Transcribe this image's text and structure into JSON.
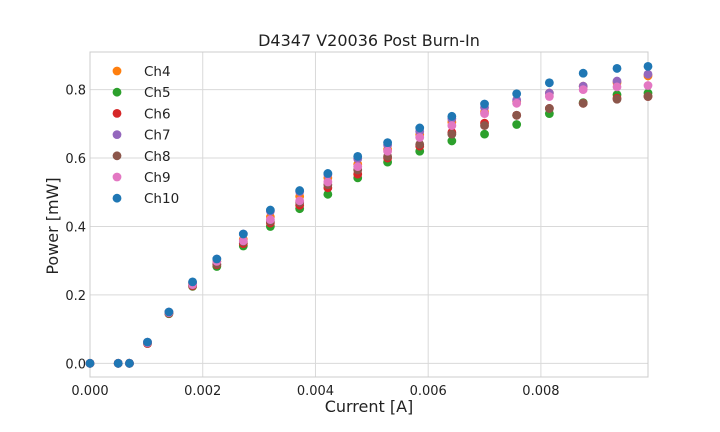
{
  "chart_data": {
    "type": "scatter",
    "title": "D4347 V20036 Post Burn-In",
    "xlabel": "Current [A]",
    "ylabel": "Power [mW]",
    "xlim": [
      0,
      0.0099
    ],
    "ylim": [
      -0.04,
      0.91
    ],
    "xticks": [
      0.0,
      0.002,
      0.004,
      0.006,
      0.008
    ],
    "xtick_labels": [
      "0.000",
      "0.002",
      "0.004",
      "0.006",
      "0.008"
    ],
    "yticks": [
      0.0,
      0.2,
      0.4,
      0.6,
      0.8
    ],
    "ytick_labels": [
      "0.0",
      "0.2",
      "0.4",
      "0.6",
      "0.8"
    ],
    "grid": true,
    "legend_position": "top-left",
    "x": [
      0.0,
      0.0005,
      0.0007,
      0.00102,
      0.0014,
      0.00182,
      0.00225,
      0.00272,
      0.0032,
      0.00372,
      0.00422,
      0.00475,
      0.00528,
      0.00585,
      0.00642,
      0.007,
      0.00757,
      0.00815,
      0.00875,
      0.00935,
      0.0099
    ],
    "series": [
      {
        "name": "Ch4",
        "color": "#ff7f0e",
        "values": [
          0.0,
          0.0,
          0.0,
          0.06,
          0.148,
          0.232,
          0.298,
          0.362,
          0.428,
          0.488,
          0.542,
          0.582,
          0.625,
          0.668,
          0.705,
          0.735,
          0.765,
          0.79,
          0.81,
          0.82,
          0.84
        ]
      },
      {
        "name": "Ch5",
        "color": "#2ca02c",
        "values": [
          0.0,
          0.0,
          0.0,
          0.058,
          0.145,
          0.225,
          0.283,
          0.343,
          0.4,
          0.452,
          0.494,
          0.542,
          0.588,
          0.62,
          0.65,
          0.67,
          0.698,
          0.73,
          0.762,
          0.785,
          0.79
        ]
      },
      {
        "name": "Ch6",
        "color": "#d62728",
        "values": [
          0.0,
          0.0,
          0.0,
          0.058,
          0.146,
          0.226,
          0.288,
          0.35,
          0.41,
          0.462,
          0.513,
          0.553,
          0.6,
          0.635,
          0.675,
          0.702,
          0.725,
          0.745,
          0.76,
          0.775,
          0.78
        ]
      },
      {
        "name": "Ch7",
        "color": "#9467bd",
        "values": [
          0.0,
          0.0,
          0.0,
          0.062,
          0.15,
          0.236,
          0.305,
          0.378,
          0.445,
          0.502,
          0.552,
          0.598,
          0.638,
          0.678,
          0.715,
          0.748,
          0.77,
          0.79,
          0.81,
          0.825,
          0.845
        ]
      },
      {
        "name": "Ch8",
        "color": "#8c564b",
        "values": [
          0.0,
          0.0,
          0.0,
          0.06,
          0.147,
          0.228,
          0.29,
          0.355,
          0.415,
          0.47,
          0.522,
          0.565,
          0.605,
          0.64,
          0.67,
          0.695,
          0.725,
          0.745,
          0.76,
          0.772,
          0.78
        ]
      },
      {
        "name": "Ch9",
        "color": "#e377c2",
        "values": [
          0.0,
          0.0,
          0.0,
          0.06,
          0.148,
          0.23,
          0.298,
          0.358,
          0.42,
          0.475,
          0.53,
          0.575,
          0.62,
          0.66,
          0.695,
          0.73,
          0.76,
          0.78,
          0.8,
          0.808,
          0.812
        ]
      },
      {
        "name": "Ch10",
        "color": "#1f77b4",
        "values": [
          0.0,
          0.0,
          0.0,
          0.062,
          0.15,
          0.238,
          0.305,
          0.378,
          0.448,
          0.505,
          0.555,
          0.605,
          0.645,
          0.688,
          0.722,
          0.758,
          0.788,
          0.82,
          0.848,
          0.862,
          0.868
        ]
      }
    ]
  }
}
